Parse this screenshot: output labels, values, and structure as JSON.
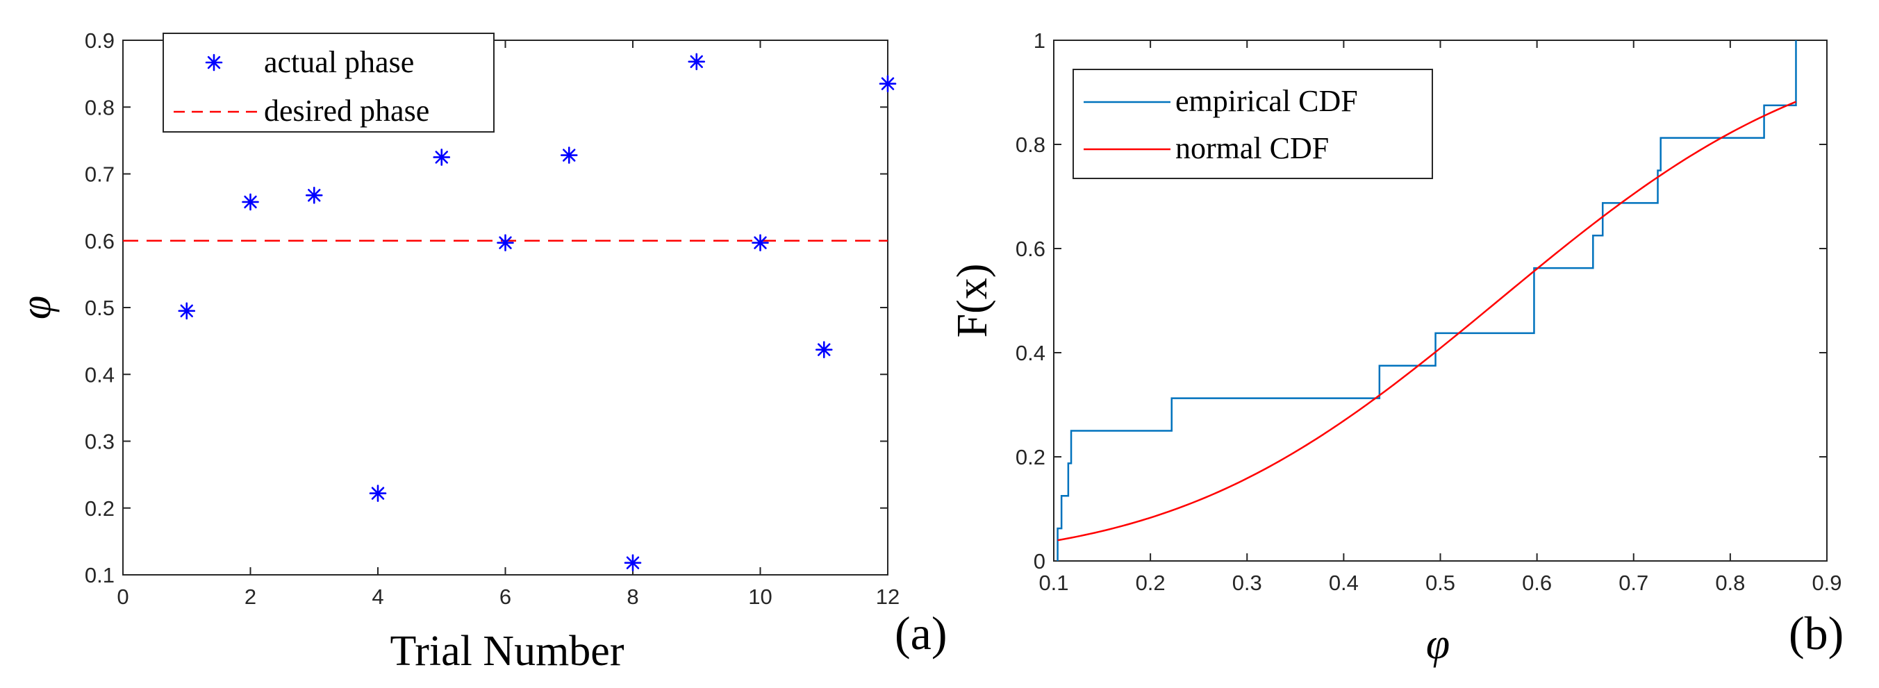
{
  "chart_data": [
    {
      "type": "scatter",
      "panel_label": "(a)",
      "xlabel": "Trial Number",
      "ylabel": "φ",
      "xlim": [
        0,
        12
      ],
      "ylim": [
        0.1,
        0.9
      ],
      "xticks": [
        "0",
        "2",
        "4",
        "6",
        "8",
        "10",
        "12"
      ],
      "yticks": [
        "0.1",
        "0.2",
        "0.3",
        "0.4",
        "0.5",
        "0.6",
        "0.7",
        "0.8",
        "0.9"
      ],
      "series": [
        {
          "name": "actual phase",
          "style": "asterisk",
          "color": "#0000ff",
          "x": [
            1,
            2,
            3,
            4,
            5,
            6,
            7,
            8,
            9,
            10,
            11,
            12
          ],
          "y": [
            0.495,
            0.658,
            0.668,
            0.222,
            0.725,
            0.597,
            0.728,
            0.118,
            0.868,
            0.597,
            0.437,
            0.835
          ]
        },
        {
          "name": "desired phase",
          "style": "dashed",
          "color": "#ff0000",
          "x": [
            0,
            12
          ],
          "y": [
            0.6,
            0.6
          ]
        }
      ],
      "legend": {
        "position": "top-left",
        "entries": [
          "actual phase",
          "desired phase"
        ]
      }
    },
    {
      "type": "line",
      "panel_label": "(b)",
      "xlabel": "φ",
      "ylabel": "F(x)",
      "xlim": [
        0.1,
        0.9
      ],
      "ylim": [
        0,
        1
      ],
      "xticks": [
        "0.1",
        "0.2",
        "0.3",
        "0.4",
        "0.5",
        "0.6",
        "0.7",
        "0.8",
        "0.9"
      ],
      "yticks": [
        "0",
        "0.2",
        "0.4",
        "0.6",
        "0.8",
        "1"
      ],
      "series": [
        {
          "name": "empirical CDF",
          "style": "step",
          "color": "#0072bd",
          "samples": [
            0.104,
            0.108,
            0.115,
            0.118,
            0.222,
            0.437,
            0.495,
            0.597,
            0.597,
            0.658,
            0.668,
            0.725,
            0.728,
            0.835,
            0.868,
            0.868
          ]
        },
        {
          "name": "normal CDF",
          "style": "solid",
          "color": "#ff0000",
          "mean": 0.56,
          "std": 0.26,
          "x_range": [
            0.104,
            0.868
          ]
        }
      ],
      "legend": {
        "position": "top-left",
        "entries": [
          "empirical CDF",
          "normal CDF"
        ]
      }
    }
  ]
}
